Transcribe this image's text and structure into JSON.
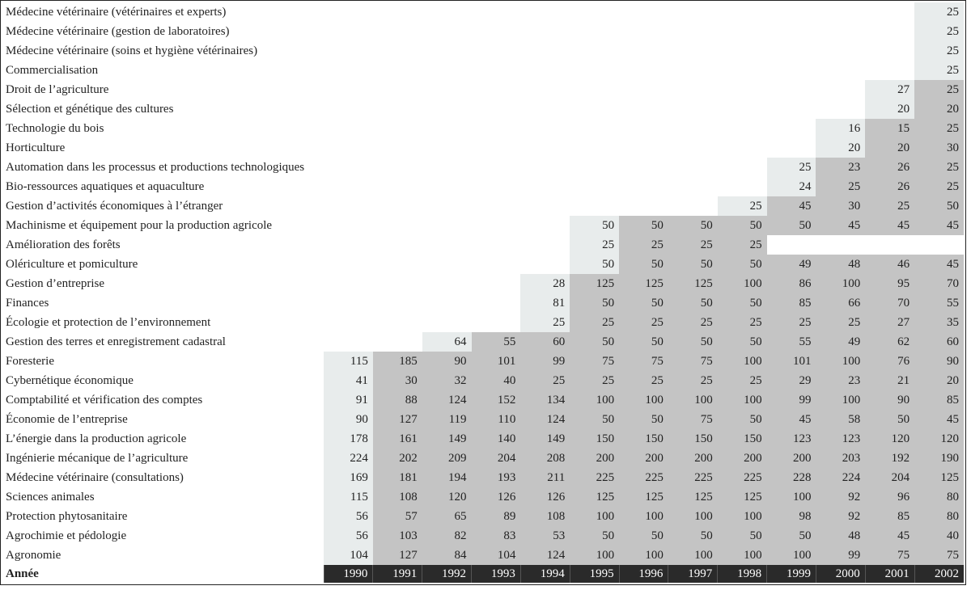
{
  "table": {
    "header_label": "Année",
    "years": [
      "1990",
      "1991",
      "1992",
      "1993",
      "1994",
      "1995",
      "1996",
      "1997",
      "1998",
      "1999",
      "2000",
      "2001",
      "2002"
    ],
    "rows": [
      {
        "label": "Médecine vétérinaire (vétérinaires et experts)",
        "values": [
          "",
          "",
          "",
          "",
          "",
          "",
          "",
          "",
          "",
          "",
          "",
          "",
          "25"
        ]
      },
      {
        "label": "Médecine vétérinaire (gestion de laboratoires)",
        "values": [
          "",
          "",
          "",
          "",
          "",
          "",
          "",
          "",
          "",
          "",
          "",
          "",
          "25"
        ]
      },
      {
        "label": "Médecine vétérinaire (soins et hygiène vétérinaires)",
        "values": [
          "",
          "",
          "",
          "",
          "",
          "",
          "",
          "",
          "",
          "",
          "",
          "",
          "25"
        ]
      },
      {
        "label": "Commercialisation",
        "values": [
          "",
          "",
          "",
          "",
          "",
          "",
          "",
          "",
          "",
          "",
          "",
          "",
          "25"
        ]
      },
      {
        "label": "Droit de l’agriculture",
        "values": [
          "",
          "",
          "",
          "",
          "",
          "",
          "",
          "",
          "",
          "",
          "",
          "27",
          "25"
        ]
      },
      {
        "label": "Sélection et génétique des cultures",
        "values": [
          "",
          "",
          "",
          "",
          "",
          "",
          "",
          "",
          "",
          "",
          "",
          "20",
          "20"
        ]
      },
      {
        "label": "Technologie du bois",
        "values": [
          "",
          "",
          "",
          "",
          "",
          "",
          "",
          "",
          "",
          "",
          "16",
          "15",
          "25"
        ]
      },
      {
        "label": "Horticulture",
        "values": [
          "",
          "",
          "",
          "",
          "",
          "",
          "",
          "",
          "",
          "",
          "20",
          "20",
          "30"
        ]
      },
      {
        "label": "Automation dans les processus et productions technologiques",
        "values": [
          "",
          "",
          "",
          "",
          "",
          "",
          "",
          "",
          "",
          "25",
          "23",
          "26",
          "25"
        ]
      },
      {
        "label": "Bio-ressources aquatiques et aquaculture",
        "values": [
          "",
          "",
          "",
          "",
          "",
          "",
          "",
          "",
          "",
          "24",
          "25",
          "26",
          "25"
        ]
      },
      {
        "label": "Gestion d’activités économiques à l’étranger",
        "values": [
          "",
          "",
          "",
          "",
          "",
          "",
          "",
          "",
          "25",
          "45",
          "30",
          "25",
          "50"
        ]
      },
      {
        "label": "Machinisme et équipement pour la production agricole",
        "values": [
          "",
          "",
          "",
          "",
          "",
          "50",
          "50",
          "50",
          "50",
          "50",
          "45",
          "45",
          "45"
        ]
      },
      {
        "label": "Amélioration des forêts",
        "values": [
          "",
          "",
          "",
          "",
          "",
          "25",
          "25",
          "25",
          "25",
          "",
          "",
          "",
          ""
        ]
      },
      {
        "label": "Olériculture et pomiculture",
        "values": [
          "",
          "",
          "",
          "",
          "",
          "50",
          "50",
          "50",
          "50",
          "49",
          "48",
          "46",
          "45"
        ]
      },
      {
        "label": "Gestion d’entreprise",
        "values": [
          "",
          "",
          "",
          "",
          "28",
          "125",
          "125",
          "125",
          "100",
          "86",
          "100",
          "95",
          "70"
        ]
      },
      {
        "label": "Finances",
        "values": [
          "",
          "",
          "",
          "",
          "81",
          "50",
          "50",
          "50",
          "50",
          "85",
          "66",
          "70",
          "55"
        ]
      },
      {
        "label": "Écologie et protection de l’environnement",
        "values": [
          "",
          "",
          "",
          "",
          "25",
          "25",
          "25",
          "25",
          "25",
          "25",
          "25",
          "27",
          "35"
        ]
      },
      {
        "label": "Gestion des terres et enregistrement cadastral",
        "values": [
          "",
          "",
          "64",
          "55",
          "60",
          "50",
          "50",
          "50",
          "50",
          "55",
          "49",
          "62",
          "60"
        ]
      },
      {
        "label": "Foresterie",
        "values": [
          "115",
          "185",
          "90",
          "101",
          "99",
          "75",
          "75",
          "75",
          "100",
          "101",
          "100",
          "76",
          "90"
        ]
      },
      {
        "label": "Cybernétique économique",
        "values": [
          "41",
          "30",
          "32",
          "40",
          "25",
          "25",
          "25",
          "25",
          "25",
          "29",
          "23",
          "21",
          "20"
        ]
      },
      {
        "label": "Comptabilité et vérification des comptes",
        "values": [
          "91",
          "88",
          "124",
          "152",
          "134",
          "100",
          "100",
          "100",
          "100",
          "99",
          "100",
          "90",
          "85"
        ]
      },
      {
        "label": "Économie de l’entreprise",
        "values": [
          "90",
          "127",
          "119",
          "110",
          "124",
          "50",
          "50",
          "75",
          "50",
          "45",
          "58",
          "50",
          "45"
        ]
      },
      {
        "label": "L’énergie dans la production agricole",
        "values": [
          "178",
          "161",
          "149",
          "140",
          "149",
          "150",
          "150",
          "150",
          "150",
          "123",
          "123",
          "120",
          "120"
        ]
      },
      {
        "label": "Ingénierie mécanique de l’agriculture",
        "values": [
          "224",
          "202",
          "209",
          "204",
          "208",
          "200",
          "200",
          "200",
          "200",
          "200",
          "203",
          "192",
          "190"
        ]
      },
      {
        "label": "Médecine vétérinaire (consultations)",
        "values": [
          "169",
          "181",
          "194",
          "193",
          "211",
          "225",
          "225",
          "225",
          "225",
          "228",
          "224",
          "204",
          "125"
        ]
      },
      {
        "label": "Sciences animales",
        "values": [
          "115",
          "108",
          "120",
          "126",
          "126",
          "125",
          "125",
          "125",
          "125",
          "100",
          "92",
          "96",
          "80"
        ]
      },
      {
        "label": "Protection phytosanitaire",
        "values": [
          "56",
          "57",
          "65",
          "89",
          "108",
          "100",
          "100",
          "100",
          "100",
          "98",
          "92",
          "85",
          "80"
        ]
      },
      {
        "label": "Agrochimie et pédologie",
        "values": [
          "56",
          "103",
          "82",
          "83",
          "53",
          "50",
          "50",
          "50",
          "50",
          "50",
          "48",
          "45",
          "40"
        ]
      },
      {
        "label": "Agronomie",
        "values": [
          "104",
          "127",
          "84",
          "104",
          "124",
          "100",
          "100",
          "100",
          "100",
          "100",
          "99",
          "75",
          "75"
        ]
      }
    ]
  }
}
